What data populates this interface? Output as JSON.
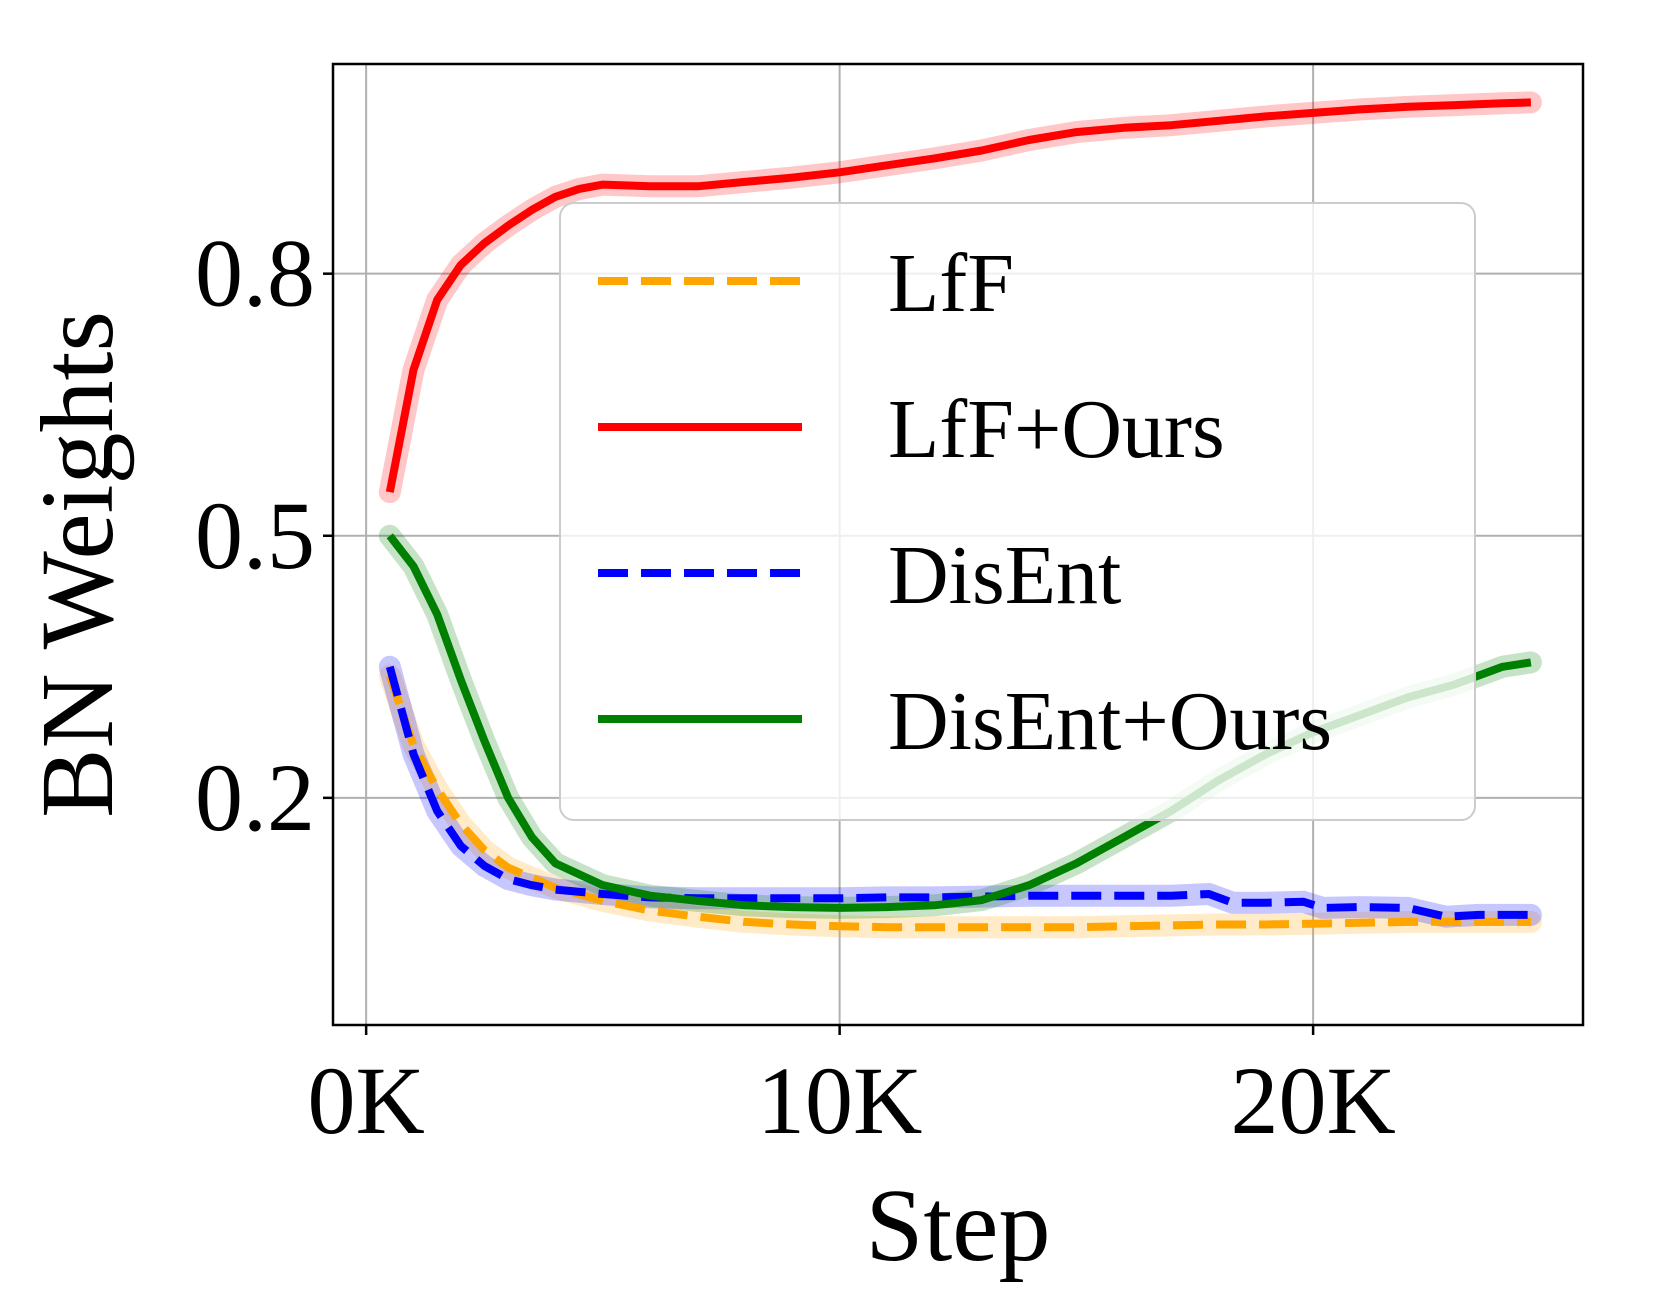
{
  "chart_data": {
    "type": "line",
    "xlabel": "Step",
    "ylabel": "BN Weights",
    "xlim": [
      -700,
      25700
    ],
    "ylim": [
      -0.06,
      1.04
    ],
    "xticks": [
      0,
      10000,
      20000
    ],
    "xtick_labels": [
      "0K",
      "10K",
      "20K"
    ],
    "yticks": [
      0.2,
      0.5,
      0.8
    ],
    "ytick_labels": [
      "0.2",
      "0.5",
      "0.8"
    ],
    "grid": true,
    "legend_position": "upper-right",
    "series": [
      {
        "name": "LfF",
        "color": "#ffa500",
        "style": "dashed",
        "x": [
          500,
          1000,
          1500,
          2000,
          2500,
          3000,
          4000,
          5000,
          6000,
          7000,
          8000,
          9000,
          10000,
          11000,
          12000,
          13000,
          14000,
          15000,
          16000,
          17000,
          18000,
          19000,
          20000,
          21000,
          22000,
          23000,
          24000,
          24600
        ],
        "y": [
          0.34,
          0.26,
          0.21,
          0.17,
          0.14,
          0.12,
          0.097,
          0.082,
          0.071,
          0.064,
          0.058,
          0.055,
          0.053,
          0.052,
          0.052,
          0.052,
          0.052,
          0.052,
          0.053,
          0.054,
          0.055,
          0.055,
          0.056,
          0.057,
          0.058,
          0.058,
          0.058,
          0.058
        ]
      },
      {
        "name": "LfF+Ours",
        "color": "#ff0000",
        "style": "solid",
        "x": [
          500,
          1000,
          1500,
          2000,
          2500,
          3000,
          3500,
          4000,
          4500,
          5000,
          6000,
          7000,
          8000,
          9000,
          10000,
          11000,
          12000,
          13000,
          14000,
          15000,
          16000,
          17000,
          18000,
          19000,
          20000,
          21000,
          22000,
          23000,
          24000,
          24600
        ],
        "y": [
          0.55,
          0.69,
          0.77,
          0.81,
          0.835,
          0.855,
          0.873,
          0.888,
          0.897,
          0.902,
          0.9,
          0.9,
          0.905,
          0.91,
          0.916,
          0.924,
          0.932,
          0.941,
          0.953,
          0.962,
          0.967,
          0.97,
          0.975,
          0.98,
          0.984,
          0.988,
          0.991,
          0.993,
          0.995,
          0.996
        ]
      },
      {
        "name": "DisEnt",
        "color": "#0000ff",
        "style": "dashed",
        "x": [
          500,
          1000,
          1500,
          2000,
          2500,
          3000,
          3500,
          4000,
          5000,
          6000,
          7000,
          8000,
          9000,
          10000,
          11000,
          12000,
          13000,
          14000,
          15000,
          16000,
          17000,
          17800,
          18300,
          19000,
          19800,
          20200,
          21000,
          22000,
          22800,
          23500,
          24600
        ],
        "y": [
          0.35,
          0.25,
          0.185,
          0.145,
          0.122,
          0.107,
          0.1,
          0.095,
          0.09,
          0.086,
          0.085,
          0.085,
          0.085,
          0.085,
          0.086,
          0.086,
          0.087,
          0.088,
          0.088,
          0.088,
          0.088,
          0.09,
          0.08,
          0.08,
          0.081,
          0.074,
          0.075,
          0.074,
          0.064,
          0.066,
          0.066
        ]
      },
      {
        "name": "DisEnt+Ours",
        "color": "#008000",
        "style": "solid",
        "x": [
          500,
          1000,
          1500,
          2000,
          2500,
          3000,
          3500,
          4000,
          5000,
          6000,
          7000,
          8000,
          9000,
          10000,
          11000,
          12000,
          13000,
          14000,
          15000,
          16000,
          17000,
          18000,
          19000,
          20000,
          21000,
          22000,
          23000,
          24000,
          24600
        ],
        "y": [
          0.5,
          0.465,
          0.41,
          0.335,
          0.265,
          0.2,
          0.155,
          0.125,
          0.1,
          0.088,
          0.082,
          0.077,
          0.075,
          0.074,
          0.075,
          0.077,
          0.083,
          0.1,
          0.125,
          0.155,
          0.185,
          0.22,
          0.25,
          0.275,
          0.295,
          0.315,
          0.33,
          0.35,
          0.355
        ]
      }
    ]
  }
}
